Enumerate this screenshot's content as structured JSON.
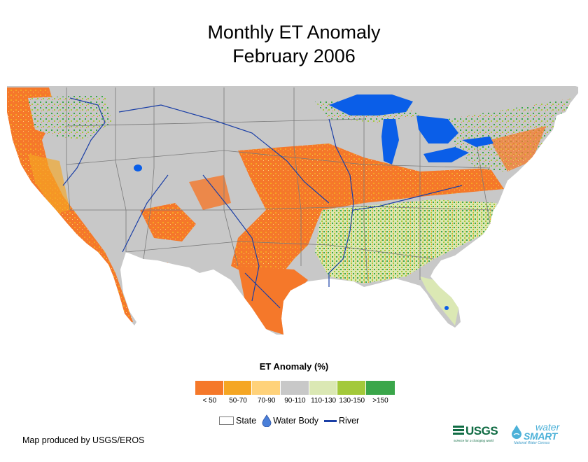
{
  "title": {
    "line1": "Monthly ET Anomaly",
    "line2": "February 2006"
  },
  "legend": {
    "title": "ET Anomaly (%)",
    "classes": [
      {
        "label": "< 50",
        "color": "#f5782a"
      },
      {
        "label": "50-70",
        "color": "#f5a623"
      },
      {
        "label": "70-90",
        "color": "#ffd27a"
      },
      {
        "label": "90-110",
        "color": "#c8c8c8"
      },
      {
        "label": "110-130",
        "color": "#dbe8b4"
      },
      {
        "label": "130-150",
        "color": "#a3c93a"
      },
      {
        "label": ">150",
        "color": "#3aa64a"
      }
    ],
    "state_label": "State",
    "water_label": "Water Body",
    "river_label": "River"
  },
  "credit": "Map produced by USGS/EROS",
  "logos": {
    "usgs": "USGS",
    "usgs_tagline": "science for a changing world",
    "watersmart_top": "water",
    "watersmart_bottom": "SMART",
    "watersmart_tagline": "National Water Census"
  },
  "colors": {
    "water": "#0a5ee8",
    "river": "#1b3fa6",
    "state_border": "#7a7a7a",
    "background_land": "#c8c8c8"
  }
}
